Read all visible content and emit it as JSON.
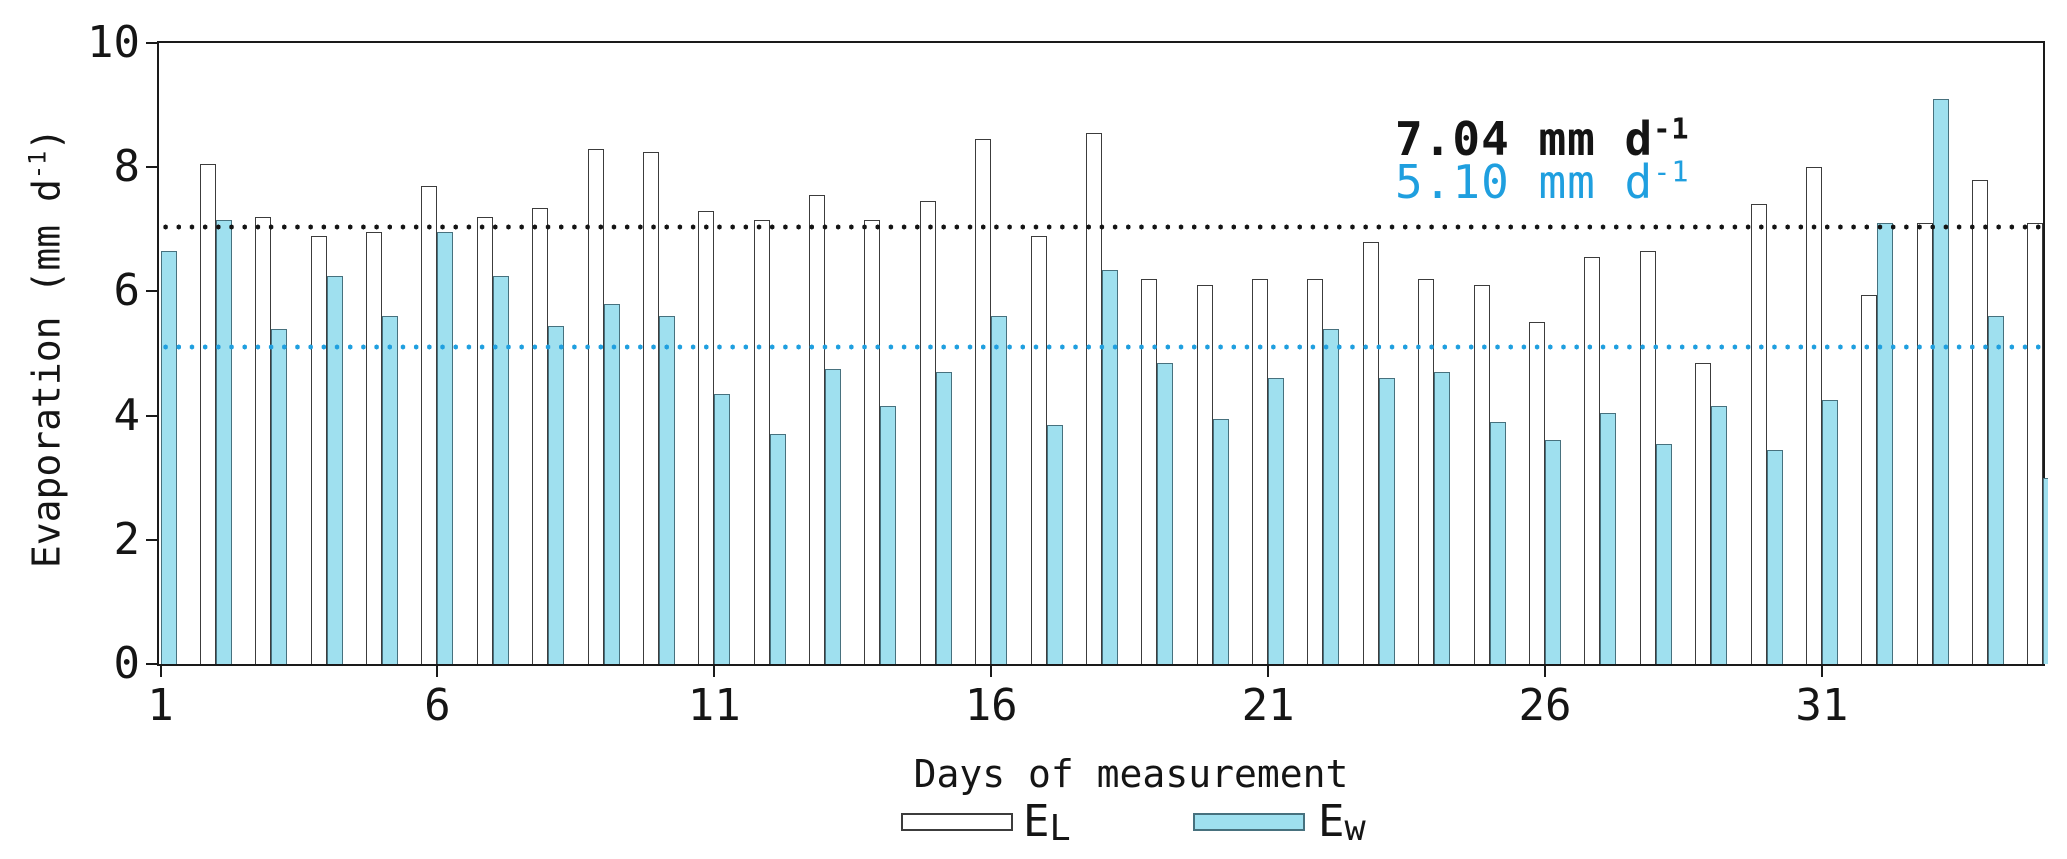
{
  "figure": {
    "y_axis_title_base": "Evaporation (mm d",
    "y_axis_title_sup": "-1",
    "y_axis_title_close": ")",
    "x_axis_title": "Days of measurement",
    "background": "#ffffff",
    "accent_blue": "#1f9fdf",
    "bar_fill_blue": "#9fe0ef",
    "bar_stroke": "#3c3c3c"
  },
  "annotations": {
    "el": {
      "text": "7.04 mm d",
      "sup": "-1",
      "color": "#141414"
    },
    "ew": {
      "text": "5.10 mm d",
      "sup": "-1",
      "color": "#1f9fdf"
    }
  },
  "legend": {
    "el": {
      "main": "E",
      "sub": "L"
    },
    "ew": {
      "main": "E",
      "sub": "w"
    }
  },
  "chart_data": {
    "type": "bar",
    "title": "",
    "xlabel": "Days of measurement",
    "ylabel": "Evaporation (mm d-1)",
    "ylim": [
      0,
      10
    ],
    "y_ticks": [
      0,
      2,
      4,
      6,
      8,
      10
    ],
    "x_tick_days": [
      1,
      6,
      11,
      16,
      21,
      26,
      31
    ],
    "grid": false,
    "legend_position": "bottom-center",
    "days": [
      1,
      2,
      3,
      4,
      5,
      6,
      7,
      8,
      9,
      10,
      11,
      12,
      13,
      14,
      15,
      16,
      17,
      18,
      19,
      20,
      21,
      22,
      23,
      24,
      25,
      26,
      27,
      28,
      29,
      30,
      31,
      32,
      33,
      34,
      35
    ],
    "series": [
      {
        "name": "EL",
        "fill": "#ffffff",
        "stroke": "#3c3c3c",
        "values": [
          null,
          8.05,
          7.2,
          6.9,
          6.95,
          7.7,
          7.2,
          7.35,
          8.3,
          8.25,
          7.3,
          7.15,
          7.55,
          7.15,
          7.45,
          8.45,
          6.9,
          8.55,
          6.2,
          6.1,
          6.2,
          6.2,
          6.8,
          6.2,
          6.1,
          5.5,
          6.55,
          6.65,
          4.85,
          7.4,
          8.0,
          5.95,
          7.1,
          7.8,
          7.1
        ]
      },
      {
        "name": "Ew",
        "fill": "#9fe0ef",
        "stroke": "#47717e",
        "values": [
          6.65,
          7.15,
          5.4,
          6.25,
          5.6,
          6.95,
          6.25,
          5.45,
          5.8,
          5.6,
          4.35,
          3.7,
          4.75,
          4.15,
          4.7,
          5.6,
          3.85,
          6.35,
          4.85,
          3.95,
          4.6,
          5.4,
          4.6,
          4.7,
          3.9,
          3.6,
          4.05,
          3.55,
          4.15,
          3.45,
          4.25,
          7.1,
          9.1,
          5.6,
          3.0
        ]
      }
    ],
    "mean_lines": [
      {
        "series": "EL",
        "value": 7.04,
        "label": "7.04 mm d-1",
        "color": "#141414",
        "style": "dotted"
      },
      {
        "series": "Ew",
        "value": 5.1,
        "label": "5.10 mm d-1",
        "color": "#1f9fdf",
        "style": "dotted"
      }
    ]
  }
}
